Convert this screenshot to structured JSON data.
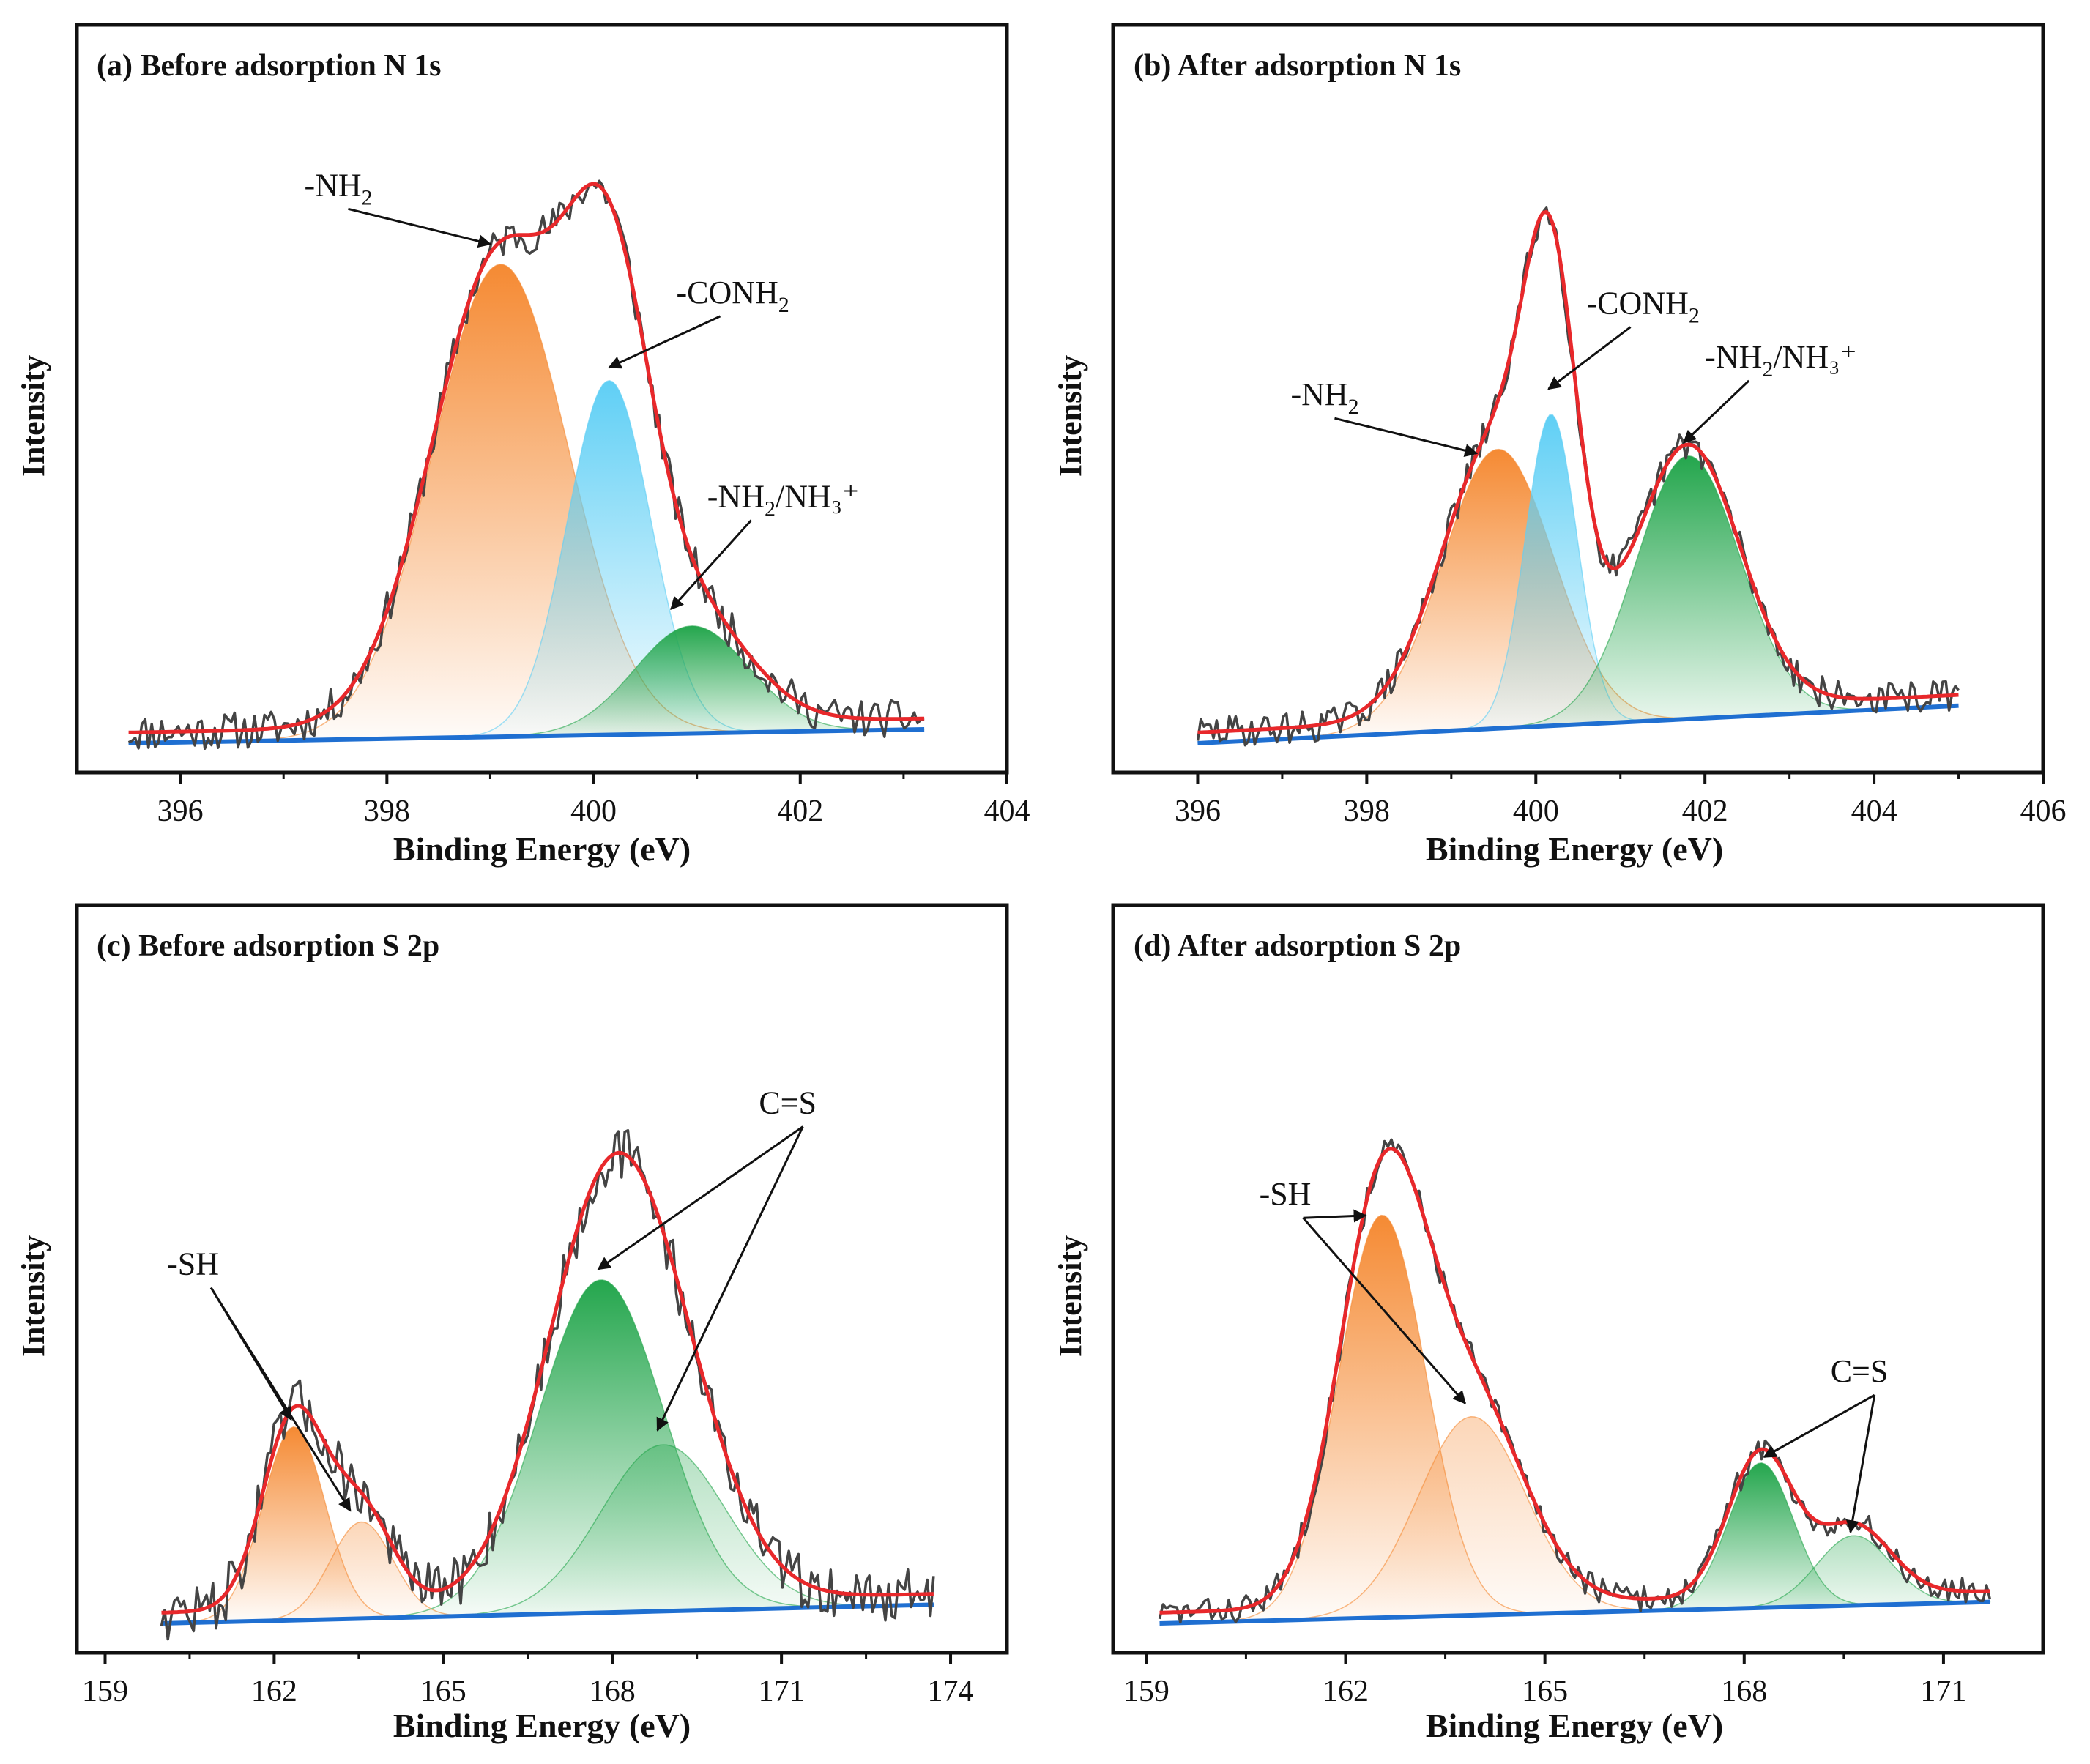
{
  "figure": {
    "type": "xps_multi_panel"
  },
  "colors": {
    "raw": "#444444",
    "envelope": "#e8282b",
    "background": "#1f6fd1",
    "orange": "#f58a33",
    "blue": "#5fcff5",
    "green": "#24a64d",
    "frame": "#111111"
  },
  "chart_data": [
    {
      "id": "a",
      "type": "line",
      "title": "(a) Before adsorption N 1s",
      "xlabel": "Binding Energy (eV)",
      "ylabel": "Intensity",
      "xlim": [
        395,
        404
      ],
      "ylim": [
        0,
        1.12
      ],
      "xticks": [
        396,
        398,
        400,
        402,
        404
      ],
      "x_start": 395.5,
      "x_end": 403.2,
      "baseline": {
        "y0": 0.0,
        "y1": 0.026
      },
      "peaks": [
        {
          "name": "-NH2",
          "center": 399.1,
          "height": 0.88,
          "fwhm": 1.55,
          "color": "orange"
        },
        {
          "name": "-CONH2",
          "center": 400.15,
          "height": 0.66,
          "fwhm": 0.95,
          "color": "blue"
        },
        {
          "name": "-NH2/NH3+",
          "center": 400.95,
          "height": 0.2,
          "fwhm": 1.3,
          "color": "green"
        }
      ],
      "noise_seed": 11,
      "noise_amp": 0.035,
      "annotations": [
        {
          "label": "-NH",
          "sub": "2",
          "sup": "",
          "tail": "",
          "text_x": 397.2,
          "text_y": 1.02,
          "targets": [
            [
              399.0,
              0.93
            ]
          ]
        },
        {
          "label": "-CONH",
          "sub": "2",
          "sup": "",
          "tail": "",
          "text_x": 400.8,
          "text_y": 0.82,
          "targets": [
            [
              400.15,
              0.7
            ]
          ]
        },
        {
          "label": "-NH",
          "sub": "2",
          "sup": "",
          "tail": "/NH₃⁺",
          "text_x": 401.1,
          "text_y": 0.44,
          "targets": [
            [
              400.75,
              0.25
            ]
          ]
        }
      ]
    },
    {
      "id": "b",
      "type": "line",
      "title": "(b) After adsorption N 1s",
      "xlabel": "Binding Energy (eV)",
      "ylabel": "Intensity",
      "xlim": [
        395,
        406
      ],
      "ylim": [
        0,
        1.12
      ],
      "xticks": [
        396,
        398,
        400,
        402,
        404,
        406
      ],
      "x_start": 396.0,
      "x_end": 405.0,
      "baseline": {
        "y0": 0.0,
        "y1": 0.07
      },
      "peaks": [
        {
          "name": "-NH2",
          "center": 399.55,
          "height": 0.52,
          "fwhm": 1.55,
          "color": "orange"
        },
        {
          "name": "-CONH2",
          "center": 400.18,
          "height": 0.58,
          "fwhm": 0.72,
          "color": "blue"
        },
        {
          "name": "-NH2/NH3+",
          "center": 401.8,
          "height": 0.49,
          "fwhm": 1.45,
          "color": "green"
        }
      ],
      "noise_seed": 29,
      "noise_amp": 0.03,
      "annotations": [
        {
          "label": "-NH",
          "sub": "2",
          "sup": "",
          "tail": "",
          "text_x": 397.1,
          "text_y": 0.63,
          "targets": [
            [
              399.3,
              0.54
            ]
          ]
        },
        {
          "label": "-CONH",
          "sub": "2",
          "sup": "",
          "tail": "",
          "text_x": 400.6,
          "text_y": 0.8,
          "targets": [
            [
              400.15,
              0.66
            ]
          ]
        },
        {
          "label": "-NH",
          "sub": "2",
          "sup": "",
          "tail": "/NH₃⁺",
          "text_x": 402.0,
          "text_y": 0.7,
          "targets": [
            [
              401.75,
              0.56
            ]
          ]
        }
      ]
    },
    {
      "id": "c",
      "type": "line",
      "title": "(c) Before adsorption S 2p",
      "xlabel": "Binding Energy (eV)",
      "ylabel": "Intensity",
      "xlim": [
        158.5,
        175
      ],
      "ylim": [
        0,
        1.12
      ],
      "xticks": [
        159,
        162,
        165,
        168,
        171,
        174
      ],
      "x_start": 160.0,
      "x_end": 173.7,
      "baseline": {
        "y0": 0.0,
        "y1": 0.035
      },
      "peaks": [
        {
          "name": "-SH",
          "center": 162.35,
          "height": 0.36,
          "fwhm": 1.3,
          "color": "orange"
        },
        {
          "name": "-SH",
          "center": 163.55,
          "height": 0.18,
          "fwhm": 1.3,
          "color": "orange_light"
        },
        {
          "name": "C=S",
          "center": 167.8,
          "height": 0.62,
          "fwhm": 2.6,
          "color": "green"
        },
        {
          "name": "C=S",
          "center": 168.9,
          "height": 0.31,
          "fwhm": 2.6,
          "color": "green_light"
        }
      ],
      "noise_seed": 47,
      "noise_amp": 0.05,
      "annotations": [
        {
          "label": "-SH",
          "sub": "",
          "sup": "",
          "tail": "",
          "text_x": 160.1,
          "text_y": 0.65,
          "targets": [
            [
              162.3,
              0.38
            ],
            [
              163.35,
              0.21
            ]
          ]
        },
        {
          "label": "C=S",
          "sub": "",
          "sup": "",
          "tail": "",
          "text_x": 170.6,
          "text_y": 0.95,
          "targets": [
            [
              167.75,
              0.66
            ],
            [
              168.8,
              0.36
            ]
          ]
        }
      ]
    },
    {
      "id": "d",
      "type": "line",
      "title": "(d) After adsorption S 2p",
      "xlabel": "Binding Energy (eV)",
      "ylabel": "Intensity",
      "xlim": [
        158.5,
        172.5
      ],
      "ylim": [
        0,
        1.12
      ],
      "xticks": [
        159,
        162,
        165,
        168,
        171
      ],
      "x_start": 159.2,
      "x_end": 171.7,
      "baseline": {
        "y0": 0.0,
        "y1": 0.04
      },
      "peaks": [
        {
          "name": "-SH",
          "center": 162.55,
          "height": 0.75,
          "fwhm": 1.55,
          "color": "orange"
        },
        {
          "name": "-SH",
          "center": 163.9,
          "height": 0.37,
          "fwhm": 1.9,
          "color": "orange_light"
        },
        {
          "name": "C=S",
          "center": 168.25,
          "height": 0.27,
          "fwhm": 1.15,
          "color": "green"
        },
        {
          "name": "C=S",
          "center": 169.65,
          "height": 0.13,
          "fwhm": 1.3,
          "color": "green_light"
        }
      ],
      "noise_seed": 83,
      "noise_amp": 0.025,
      "annotations": [
        {
          "label": "-SH",
          "sub": "",
          "sup": "",
          "tail": "",
          "text_x": 160.7,
          "text_y": 0.78,
          "targets": [
            [
              162.3,
              0.76
            ],
            [
              163.8,
              0.41
            ]
          ]
        },
        {
          "label": "C=S",
          "sub": "",
          "sup": "",
          "tail": "",
          "text_x": 169.3,
          "text_y": 0.45,
          "targets": [
            [
              168.3,
              0.31
            ],
            [
              169.6,
              0.17
            ]
          ]
        }
      ]
    }
  ]
}
